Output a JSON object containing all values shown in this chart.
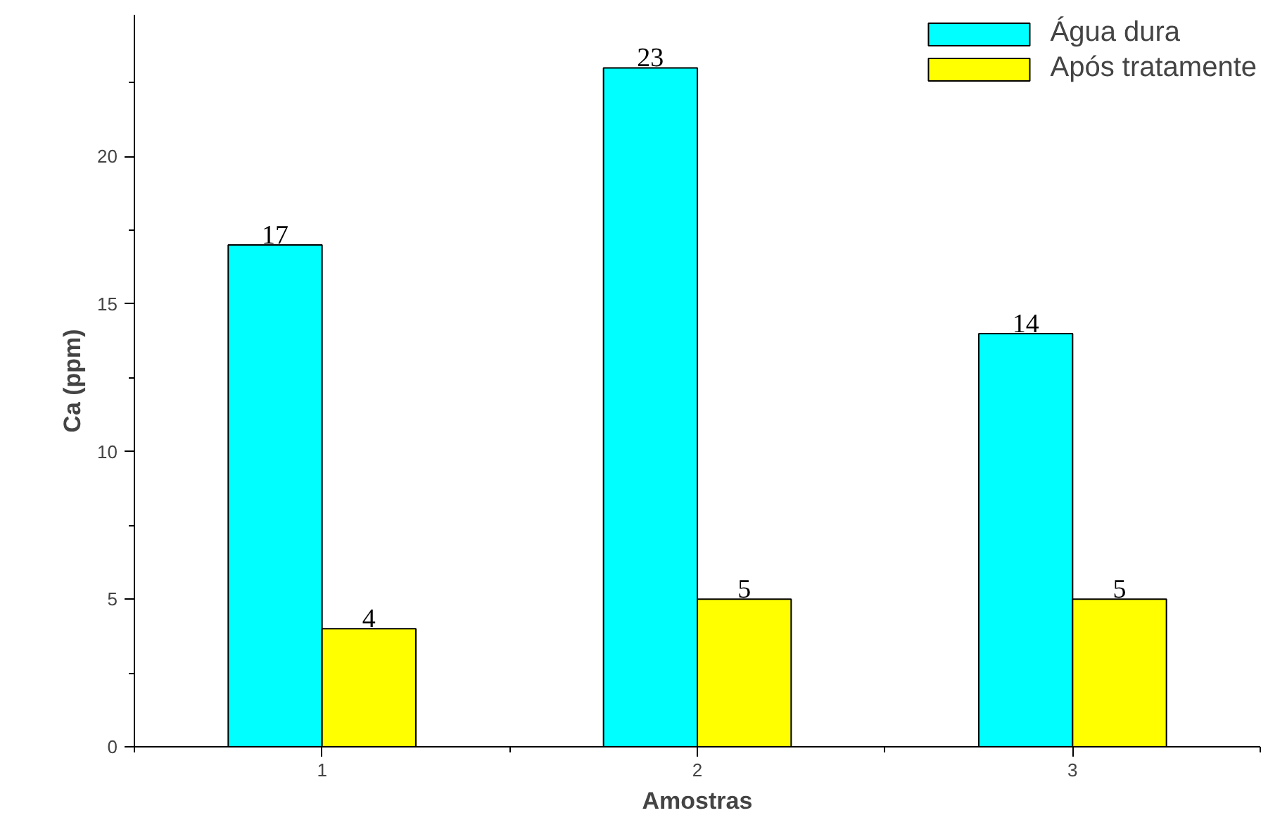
{
  "chart_data": {
    "type": "bar",
    "xlabel": "Amostras",
    "ylabel": "Ca (ppm)",
    "categories": [
      "1",
      "2",
      "3"
    ],
    "series": [
      {
        "name": "Água dura",
        "color": "#00ffff",
        "values": [
          17,
          23,
          14
        ]
      },
      {
        "name": "Após tratamente",
        "color": "#ffff00",
        "values": [
          4,
          5,
          5
        ]
      }
    ],
    "ylim": [
      0,
      24.8
    ],
    "yticks": [
      0,
      5,
      10,
      15,
      20
    ],
    "data_labels": true,
    "grid": false,
    "legend": "top right"
  }
}
